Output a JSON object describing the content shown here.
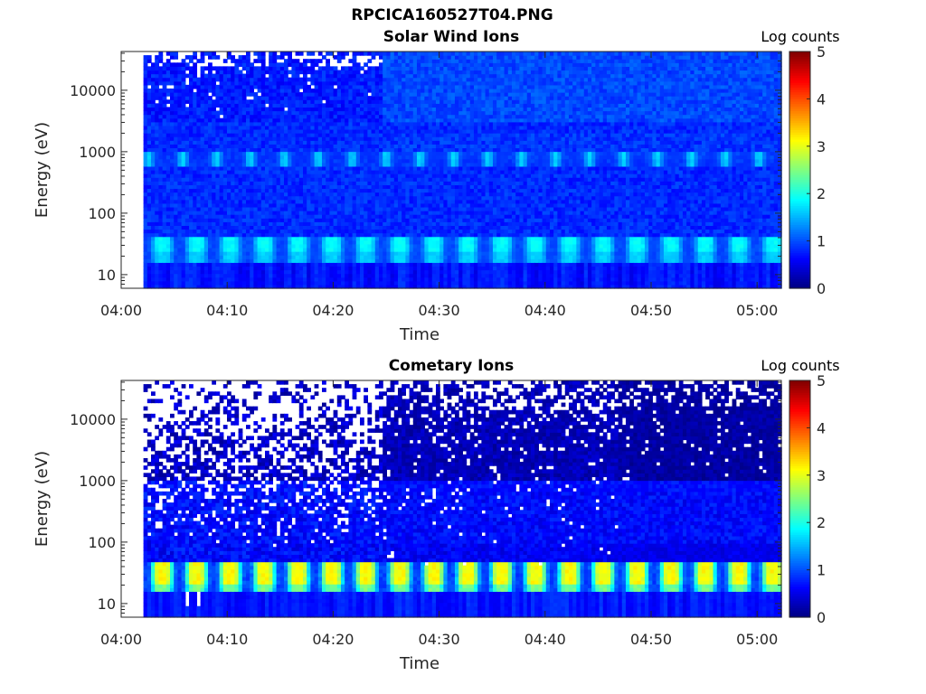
{
  "title": "RPCICA160527T04.PNG",
  "chart_data": [
    {
      "type": "heatmap",
      "title": "Solar Wind Ions",
      "xlabel": "Time",
      "ylabel": "Energy (eV)",
      "x_tick_labels": [
        "04:00",
        "04:10",
        "04:20",
        "04:30",
        "04:40",
        "04:50",
        "05:00"
      ],
      "x_tick_minutes": [
        0,
        10,
        20,
        30,
        40,
        50,
        60
      ],
      "xlim_minutes": [
        0,
        62.3
      ],
      "data_start_minute": 2.1,
      "y_scale": "log",
      "y_tick_labels": [
        "10",
        "100",
        "1000",
        "10000"
      ],
      "y_tick_values": [
        10,
        100,
        1000,
        10000
      ],
      "ylim": [
        6,
        42700
      ],
      "colorbar": {
        "label": "Log counts",
        "range": [
          0,
          5
        ],
        "tick_labels": [
          "0",
          "1",
          "2",
          "3",
          "4",
          "5"
        ],
        "colormap": "jet"
      },
      "features": {
        "background_log_counts": 0.8,
        "low_energy_pulses": {
          "energy_eV": [
            19,
            42
          ],
          "peak_log_counts": 1.8,
          "period_min": 3.2,
          "first_center_min": 3.9,
          "width_min": 2.1
        },
        "mid_energy_pulses": {
          "energy_eV": [
            600,
            950
          ],
          "peak_log_counts": 1.6,
          "period_min": 3.2,
          "first_center_min": 2.6,
          "width_min": 1.0
        },
        "sparse_high_energy_until_min": 24.5
      }
    },
    {
      "type": "heatmap",
      "title": "Cometary Ions",
      "xlabel": "Time",
      "ylabel": "Energy (eV)",
      "x_tick_labels": [
        "04:00",
        "04:10",
        "04:20",
        "04:30",
        "04:40",
        "04:50",
        "05:00"
      ],
      "x_tick_minutes": [
        0,
        10,
        20,
        30,
        40,
        50,
        60
      ],
      "xlim_minutes": [
        0,
        62.3
      ],
      "data_start_minute": 2.1,
      "y_scale": "log",
      "y_tick_labels": [
        "10",
        "100",
        "1000",
        "10000"
      ],
      "y_tick_values": [
        10,
        100,
        1000,
        10000
      ],
      "ylim": [
        6,
        42700
      ],
      "colorbar": {
        "label": "Log counts",
        "range": [
          0,
          5
        ],
        "tick_labels": [
          "0",
          "1",
          "2",
          "3",
          "4",
          "5"
        ],
        "colormap": "jet"
      },
      "features": {
        "background_log_counts": 0.4,
        "low_energy_pulses": {
          "energy_eV": [
            17,
            45
          ],
          "peak_log_counts": 3.0,
          "period_min": 3.2,
          "first_center_min": 3.9,
          "width_min": 2.2
        },
        "sparse_high_energy_until_min": 24.5,
        "quiet_after_min": 47
      }
    }
  ]
}
